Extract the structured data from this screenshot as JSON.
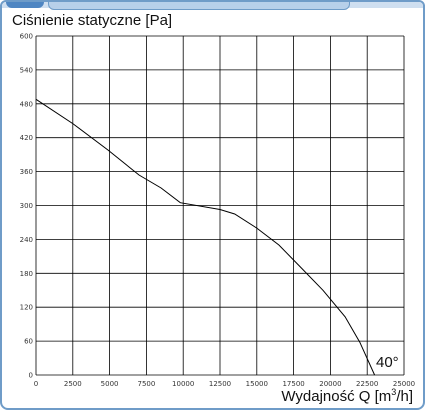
{
  "chart_data": {
    "type": "line",
    "title": "Ciśnienie statyczne [Pa]",
    "xlabel_prefix": "Wydajność Q [m",
    "xlabel_exp": "3",
    "xlabel_suffix": "/h]",
    "xlim": [
      0,
      25000
    ],
    "ylim": [
      0,
      600
    ],
    "xticks": [
      0,
      2500,
      5000,
      7500,
      10000,
      12500,
      15000,
      17500,
      20000,
      22500,
      25000
    ],
    "yticks": [
      0,
      60,
      120,
      180,
      240,
      300,
      360,
      420,
      480,
      540,
      600
    ],
    "grid": true,
    "series": [
      {
        "x": [
          0,
          2500,
          4900,
          7000,
          8500,
          9800,
          12500,
          13500,
          15000,
          16500,
          18000,
          19500,
          21000,
          22000,
          23000
        ],
        "values": [
          488,
          445,
          398,
          354,
          331,
          305,
          293,
          285,
          260,
          230,
          190,
          150,
          103,
          58,
          0
        ]
      }
    ],
    "annotation": "40°",
    "line_color": "#000000"
  }
}
